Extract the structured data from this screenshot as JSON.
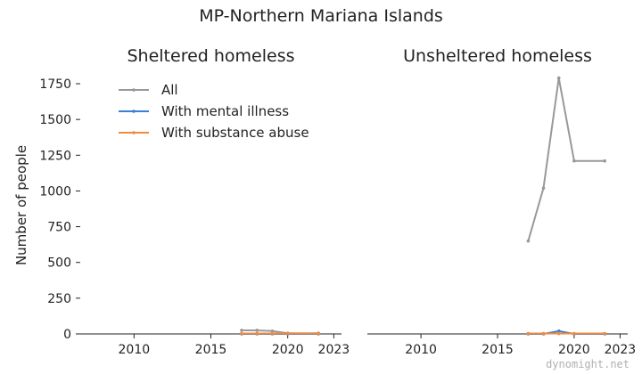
{
  "title": "MP-Northern Mariana Islands",
  "watermark": "dynomight.net",
  "colors": {
    "all": "#999999",
    "mental": "#3b7fd4",
    "substance": "#f08a3c"
  },
  "chart_data": [
    {
      "type": "line",
      "title": "Sheltered homeless",
      "ylabel": "Number of people",
      "xlim": [
        2006.5,
        2023.5
      ],
      "ylim": [
        0,
        1800
      ],
      "xticks": [
        "2010",
        "2015",
        "2020",
        "2023"
      ],
      "yticks": [
        "0",
        "250",
        "500",
        "750",
        "1000",
        "1250",
        "1500",
        "1750"
      ],
      "legend": "upper-left",
      "grid": false,
      "series": [
        {
          "name": "All",
          "color_key": "all",
          "x": [
            2017,
            2018,
            2019,
            2020,
            2022
          ],
          "y": [
            25,
            25,
            20,
            5,
            5
          ]
        },
        {
          "name": "With mental illness",
          "color_key": "mental",
          "x": [
            2017,
            2018,
            2019,
            2020,
            2022
          ],
          "y": [
            0,
            0,
            0,
            0,
            0
          ]
        },
        {
          "name": "With substance abuse",
          "color_key": "substance",
          "x": [
            2017,
            2018,
            2019,
            2020,
            2022
          ],
          "y": [
            3,
            3,
            3,
            3,
            3
          ]
        }
      ]
    },
    {
      "type": "line",
      "title": "Unsheltered homeless",
      "ylabel": "",
      "xlim": [
        2006.5,
        2023.5
      ],
      "ylim": [
        0,
        1800
      ],
      "xticks": [
        "2010",
        "2015",
        "2020",
        "2023"
      ],
      "yticks": [],
      "grid": false,
      "series": [
        {
          "name": "All",
          "color_key": "all",
          "x": [
            2017,
            2018,
            2019,
            2020,
            2022
          ],
          "y": [
            650,
            1020,
            1790,
            1210,
            1210
          ]
        },
        {
          "name": "With mental illness",
          "color_key": "mental",
          "x": [
            2017,
            2018,
            2019,
            2020,
            2022
          ],
          "y": [
            0,
            0,
            20,
            0,
            0
          ]
        },
        {
          "name": "With substance abuse",
          "color_key": "substance",
          "x": [
            2017,
            2018,
            2019,
            2020,
            2022
          ],
          "y": [
            3,
            3,
            3,
            3,
            3
          ]
        }
      ]
    }
  ]
}
